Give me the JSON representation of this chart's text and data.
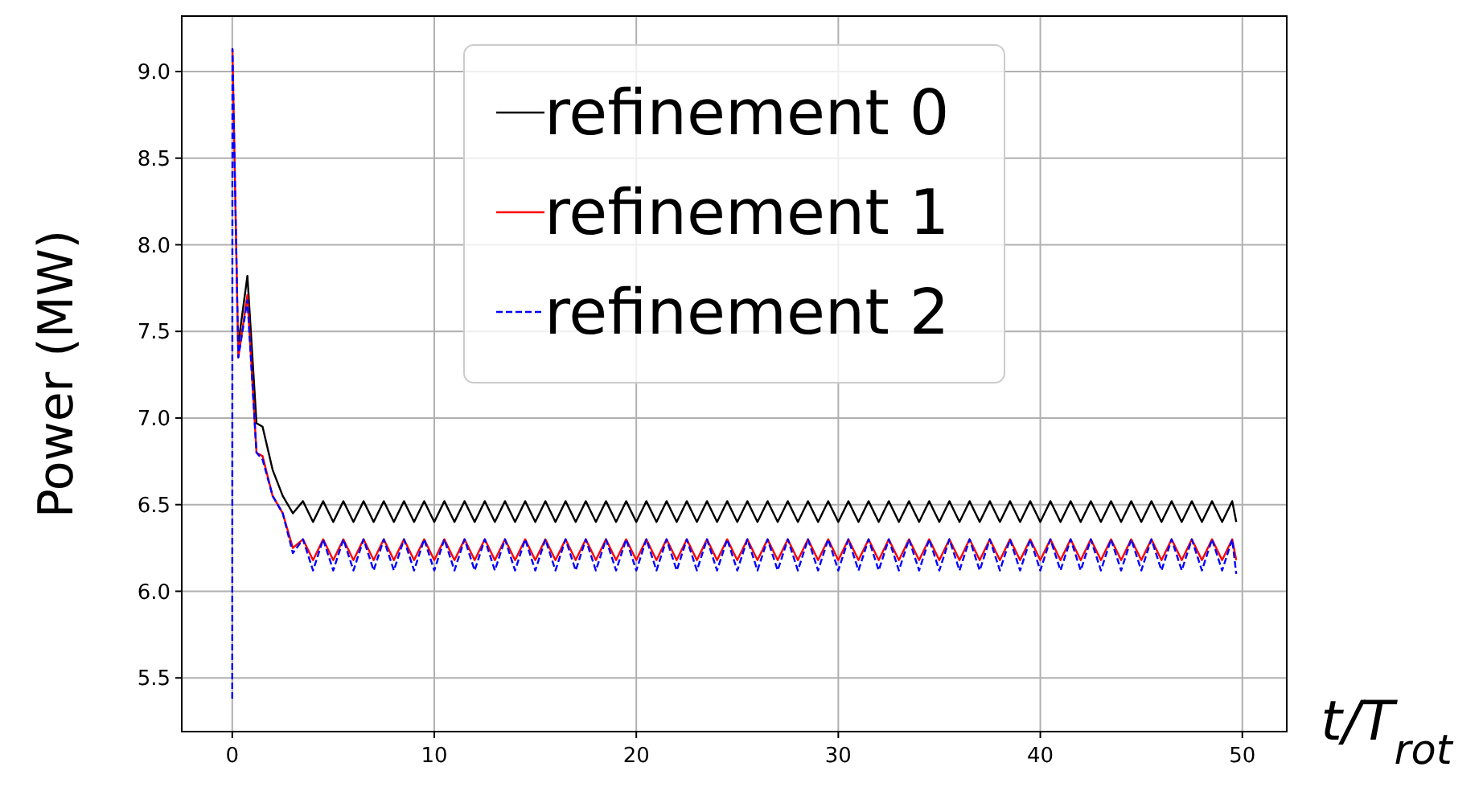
{
  "chart_data": {
    "type": "line",
    "xlabel": "t/T$_{rot}$",
    "ylabel": "Power (MW)",
    "x": [
      0,
      0.01,
      0.3,
      0.75,
      1.2,
      1.5,
      2,
      2.5,
      3,
      3.5,
      4,
      4.5,
      5,
      5.5,
      6,
      6.5,
      7,
      7.5,
      8,
      8.5,
      9,
      9.5,
      10,
      10.5,
      11,
      11.5,
      12,
      12.5,
      13,
      13.5,
      14,
      14.5,
      15,
      15.5,
      16,
      16.5,
      17,
      17.5,
      18,
      18.5,
      19,
      19.5,
      20,
      20.5,
      21,
      21.5,
      22,
      22.5,
      23,
      23.5,
      24,
      24.5,
      25,
      25.5,
      26,
      26.5,
      27,
      27.5,
      28,
      28.5,
      29,
      29.5,
      30,
      30.5,
      31,
      31.5,
      32,
      32.5,
      33,
      33.5,
      34,
      34.5,
      35,
      35.5,
      36,
      36.5,
      37,
      37.5,
      38,
      38.5,
      39,
      39.5,
      40,
      40.5,
      41,
      41.5,
      42,
      42.5,
      43,
      43.5,
      44,
      44.5,
      45,
      45.5,
      46,
      46.5,
      47,
      47.5,
      48,
      48.5,
      49,
      49.5,
      49.7
    ],
    "series": [
      {
        "name": "refinement 0",
        "color": "#000000",
        "line_style": "solid",
        "values": [
          null,
          null,
          7.43,
          7.82,
          6.97,
          6.95,
          6.7,
          6.55,
          6.45,
          6.52,
          6.4,
          6.52,
          6.4,
          6.52,
          6.4,
          6.52,
          6.4,
          6.52,
          6.4,
          6.52,
          6.4,
          6.52,
          6.4,
          6.52,
          6.4,
          6.52,
          6.4,
          6.52,
          6.4,
          6.52,
          6.4,
          6.52,
          6.4,
          6.52,
          6.4,
          6.52,
          6.4,
          6.52,
          6.4,
          6.52,
          6.4,
          6.52,
          6.4,
          6.52,
          6.4,
          6.52,
          6.4,
          6.52,
          6.4,
          6.52,
          6.4,
          6.52,
          6.4,
          6.52,
          6.4,
          6.52,
          6.4,
          6.52,
          6.4,
          6.52,
          6.4,
          6.52,
          6.4,
          6.52,
          6.4,
          6.52,
          6.4,
          6.52,
          6.4,
          6.52,
          6.4,
          6.52,
          6.4,
          6.52,
          6.4,
          6.52,
          6.4,
          6.52,
          6.4,
          6.52,
          6.4,
          6.52,
          6.4,
          6.52,
          6.4,
          6.52,
          6.4,
          6.52,
          6.4,
          6.52,
          6.4,
          6.52,
          6.4,
          6.52,
          6.4,
          6.52,
          6.4,
          6.52,
          6.4,
          6.52,
          6.4,
          6.52,
          6.4
        ]
      },
      {
        "name": "refinement 1",
        "color": "#ff0000",
        "line_style": "solid",
        "values": [
          null,
          9.13,
          7.35,
          7.71,
          6.8,
          6.78,
          6.55,
          6.45,
          6.25,
          6.3,
          6.18,
          6.3,
          6.18,
          6.3,
          6.18,
          6.3,
          6.18,
          6.3,
          6.18,
          6.3,
          6.18,
          6.3,
          6.18,
          6.3,
          6.18,
          6.3,
          6.18,
          6.3,
          6.18,
          6.3,
          6.18,
          6.3,
          6.18,
          6.3,
          6.18,
          6.3,
          6.18,
          6.3,
          6.18,
          6.3,
          6.18,
          6.3,
          6.18,
          6.3,
          6.18,
          6.3,
          6.18,
          6.3,
          6.18,
          6.3,
          6.18,
          6.3,
          6.18,
          6.3,
          6.18,
          6.3,
          6.18,
          6.3,
          6.18,
          6.3,
          6.18,
          6.3,
          6.18,
          6.3,
          6.18,
          6.3,
          6.18,
          6.3,
          6.18,
          6.3,
          6.18,
          6.3,
          6.18,
          6.3,
          6.18,
          6.3,
          6.18,
          6.3,
          6.18,
          6.3,
          6.18,
          6.3,
          6.18,
          6.3,
          6.18,
          6.3,
          6.18,
          6.3,
          6.18,
          6.3,
          6.18,
          6.3,
          6.18,
          6.3,
          6.18,
          6.3,
          6.18,
          6.3,
          6.18,
          6.3,
          6.18,
          6.3,
          6.18
        ]
      },
      {
        "name": "refinement 2",
        "color": "#0000ff",
        "line_style": "dashed",
        "values": [
          5.38,
          9.13,
          7.35,
          7.68,
          6.8,
          6.76,
          6.55,
          6.45,
          6.22,
          6.3,
          6.12,
          6.3,
          6.12,
          6.3,
          6.12,
          6.3,
          6.12,
          6.3,
          6.12,
          6.3,
          6.12,
          6.3,
          6.12,
          6.3,
          6.12,
          6.3,
          6.12,
          6.3,
          6.12,
          6.3,
          6.12,
          6.3,
          6.12,
          6.3,
          6.12,
          6.3,
          6.12,
          6.3,
          6.12,
          6.3,
          6.12,
          6.3,
          6.12,
          6.3,
          6.12,
          6.3,
          6.12,
          6.3,
          6.12,
          6.3,
          6.12,
          6.3,
          6.12,
          6.3,
          6.12,
          6.3,
          6.12,
          6.3,
          6.12,
          6.3,
          6.12,
          6.3,
          6.12,
          6.3,
          6.12,
          6.3,
          6.12,
          6.3,
          6.12,
          6.3,
          6.12,
          6.3,
          6.12,
          6.3,
          6.12,
          6.3,
          6.12,
          6.3,
          6.12,
          6.3,
          6.12,
          6.3,
          6.12,
          6.3,
          6.12,
          6.3,
          6.12,
          6.3,
          6.12,
          6.3,
          6.12,
          6.3,
          6.12,
          6.3,
          6.12,
          6.3,
          6.12,
          6.3,
          6.12,
          6.3,
          6.12,
          6.3,
          6.1
        ]
      }
    ],
    "xlim": [
      -2.5,
      52.2
    ],
    "ylim": [
      5.19,
      9.32
    ],
    "xticks": [
      0,
      10,
      20,
      30,
      40,
      50
    ],
    "yticks": [
      {
        "value": 5.5,
        "label": "5.5"
      },
      {
        "value": 6,
        "label": "6.0"
      },
      {
        "value": 6.5,
        "label": "6.5"
      },
      {
        "value": 7,
        "label": "7.0"
      },
      {
        "value": 7.5,
        "label": "7.5"
      },
      {
        "value": 8,
        "label": "8.0"
      },
      {
        "value": 8.5,
        "label": "8.5"
      },
      {
        "value": 9,
        "label": "9.0"
      }
    ],
    "grid": true,
    "legend": "top"
  }
}
